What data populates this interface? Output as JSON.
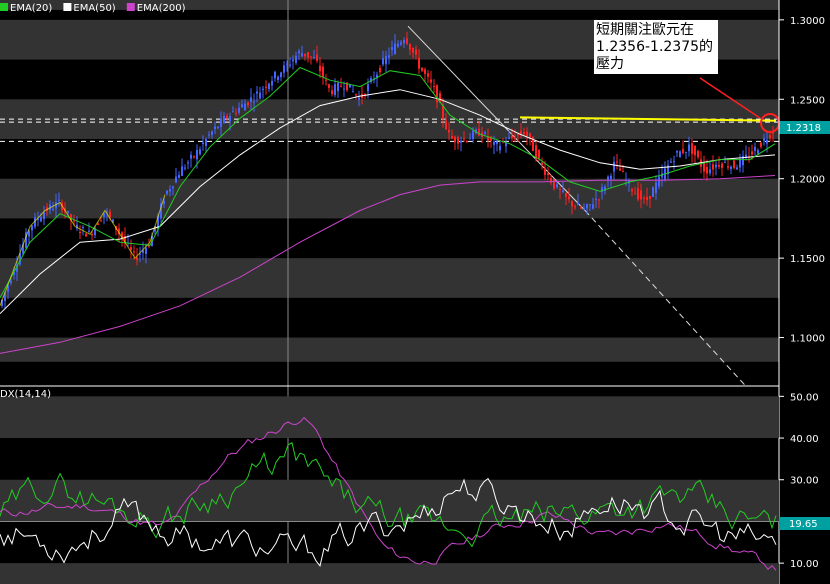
{
  "chart_data": [
    {
      "type": "candlestick",
      "panel": "price",
      "legend": [
        {
          "name": "EMA(20)",
          "color": "#22cc22"
        },
        {
          "name": "EMA(50)",
          "color": "#ffffff"
        },
        {
          "name": "EMA(200)",
          "color": "#cc44cc"
        }
      ],
      "y_ticks": [
        "1.3000",
        "1.2500",
        "1.2000",
        "1.1500",
        "1.1000"
      ],
      "y_tick_values": [
        1.3,
        1.25,
        1.2,
        1.15,
        1.1
      ],
      "ylim": [
        1.0695,
        1.3125
      ],
      "last_price_label": "1.2318",
      "last_price": 1.2318,
      "resistance_lines": [
        1.2375,
        1.2356,
        1.2235
      ],
      "annotation": {
        "lines": [
          "短期關注歐元在",
          "1.2356-1.2375的",
          "壓力"
        ]
      },
      "price_path": [
        [
          0,
          1.12
        ],
        [
          15,
          1.145
        ],
        [
          30,
          1.17
        ],
        [
          45,
          1.18
        ],
        [
          60,
          1.185
        ],
        [
          75,
          1.17
        ],
        [
          90,
          1.165
        ],
        [
          105,
          1.18
        ],
        [
          120,
          1.165
        ],
        [
          135,
          1.15
        ],
        [
          150,
          1.16
        ],
        [
          165,
          1.19
        ],
        [
          180,
          1.205
        ],
        [
          195,
          1.215
        ],
        [
          210,
          1.228
        ],
        [
          225,
          1.238
        ],
        [
          240,
          1.245
        ],
        [
          255,
          1.252
        ],
        [
          270,
          1.262
        ],
        [
          285,
          1.27
        ],
        [
          300,
          1.28
        ],
        [
          315,
          1.275
        ],
        [
          330,
          1.255
        ],
        [
          345,
          1.26
        ],
        [
          360,
          1.25
        ],
        [
          375,
          1.265
        ],
        [
          390,
          1.28
        ],
        [
          405,
          1.29
        ],
        [
          420,
          1.27
        ],
        [
          435,
          1.255
        ],
        [
          450,
          1.225
        ],
        [
          465,
          1.225
        ],
        [
          480,
          1.23
        ],
        [
          495,
          1.22
        ],
        [
          510,
          1.225
        ],
        [
          525,
          1.23
        ],
        [
          540,
          1.21
        ],
        [
          555,
          1.195
        ],
        [
          570,
          1.185
        ],
        [
          585,
          1.18
        ],
        [
          600,
          1.19
        ],
        [
          615,
          1.21
        ],
        [
          630,
          1.195
        ],
        [
          645,
          1.185
        ],
        [
          660,
          1.2
        ],
        [
          675,
          1.215
        ],
        [
          690,
          1.22
        ],
        [
          705,
          1.205
        ],
        [
          720,
          1.21
        ],
        [
          735,
          1.208
        ],
        [
          750,
          1.215
        ],
        [
          765,
          1.225
        ],
        [
          775,
          1.232
        ]
      ],
      "ema20": [
        [
          0,
          1.125
        ],
        [
          30,
          1.16
        ],
        [
          60,
          1.178
        ],
        [
          90,
          1.17
        ],
        [
          120,
          1.16
        ],
        [
          150,
          1.158
        ],
        [
          180,
          1.195
        ],
        [
          210,
          1.22
        ],
        [
          240,
          1.238
        ],
        [
          270,
          1.252
        ],
        [
          300,
          1.27
        ],
        [
          330,
          1.262
        ],
        [
          360,
          1.258
        ],
        [
          390,
          1.268
        ],
        [
          420,
          1.265
        ],
        [
          450,
          1.24
        ],
        [
          480,
          1.228
        ],
        [
          510,
          1.222
        ],
        [
          540,
          1.212
        ],
        [
          570,
          1.198
        ],
        [
          600,
          1.192
        ],
        [
          630,
          1.198
        ],
        [
          660,
          1.202
        ],
        [
          690,
          1.208
        ],
        [
          720,
          1.212
        ],
        [
          750,
          1.212
        ],
        [
          775,
          1.222
        ]
      ],
      "ema50": [
        [
          0,
          1.115
        ],
        [
          40,
          1.14
        ],
        [
          80,
          1.16
        ],
        [
          120,
          1.162
        ],
        [
          160,
          1.17
        ],
        [
          200,
          1.195
        ],
        [
          240,
          1.215
        ],
        [
          280,
          1.232
        ],
        [
          320,
          1.246
        ],
        [
          360,
          1.252
        ],
        [
          400,
          1.256
        ],
        [
          440,
          1.25
        ],
        [
          480,
          1.24
        ],
        [
          520,
          1.228
        ],
        [
          560,
          1.218
        ],
        [
          600,
          1.21
        ],
        [
          640,
          1.206
        ],
        [
          680,
          1.208
        ],
        [
          720,
          1.212
        ],
        [
          775,
          1.215
        ]
      ],
      "ema200": [
        [
          0,
          1.09
        ],
        [
          60,
          1.097
        ],
        [
          120,
          1.107
        ],
        [
          180,
          1.12
        ],
        [
          240,
          1.138
        ],
        [
          300,
          1.16
        ],
        [
          360,
          1.18
        ],
        [
          400,
          1.19
        ],
        [
          440,
          1.196
        ],
        [
          480,
          1.198
        ],
        [
          540,
          1.198
        ],
        [
          600,
          1.199
        ],
        [
          660,
          1.199
        ],
        [
          720,
          1.2
        ],
        [
          775,
          1.202
        ]
      ]
    },
    {
      "type": "line",
      "panel": "dmi",
      "label": "DX(14,14)",
      "y_ticks": [
        "50.00",
        "40.00",
        "30.00",
        "10.00"
      ],
      "y_tick_values": [
        50,
        40,
        30,
        10
      ],
      "ylim": [
        5,
        52
      ],
      "last_value_label": "19.65",
      "last_value": 19.65
    }
  ]
}
